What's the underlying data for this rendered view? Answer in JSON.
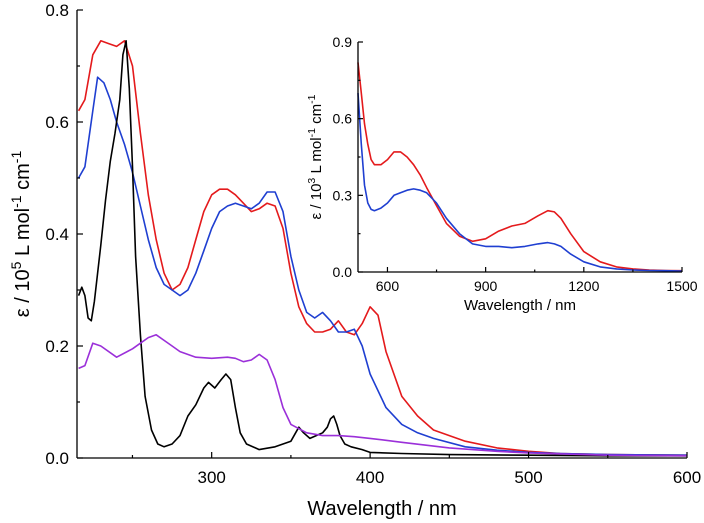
{
  "chart_data": [
    {
      "type": "line",
      "name": "main",
      "xlabel": "Wavelength / nm",
      "ylabel_parts": [
        "ε / 10",
        "5",
        " L mol",
        "-1",
        " cm",
        "-1"
      ],
      "xlim": [
        215,
        600
      ],
      "ylim": [
        0,
        0.8
      ],
      "xticks": [
        300,
        400,
        500,
        600
      ],
      "yticks": [
        0.0,
        0.2,
        0.4,
        0.6,
        0.8
      ],
      "xtick_labels": [
        "300",
        "400",
        "500",
        "600"
      ],
      "ytick_labels": [
        "0.0",
        "0.2",
        "0.4",
        "0.6",
        "0.8"
      ],
      "series": [
        {
          "name": "red",
          "color": "#e41a1c",
          "x": [
            216,
            220,
            225,
            230,
            235,
            240,
            245,
            250,
            255,
            260,
            265,
            270,
            275,
            280,
            285,
            290,
            295,
            300,
            305,
            310,
            315,
            320,
            325,
            330,
            335,
            340,
            345,
            350,
            355,
            360,
            365,
            370,
            375,
            380,
            385,
            390,
            395,
            400,
            405,
            410,
            420,
            430,
            440,
            460,
            480,
            500,
            520,
            550,
            600
          ],
          "y": [
            0.62,
            0.64,
            0.72,
            0.745,
            0.74,
            0.735,
            0.745,
            0.7,
            0.58,
            0.47,
            0.39,
            0.33,
            0.3,
            0.31,
            0.34,
            0.39,
            0.44,
            0.47,
            0.48,
            0.48,
            0.47,
            0.455,
            0.44,
            0.445,
            0.455,
            0.45,
            0.41,
            0.33,
            0.27,
            0.24,
            0.225,
            0.225,
            0.23,
            0.245,
            0.225,
            0.22,
            0.24,
            0.27,
            0.255,
            0.19,
            0.11,
            0.075,
            0.05,
            0.03,
            0.018,
            0.012,
            0.008,
            0.006,
            0.005
          ]
        },
        {
          "name": "blue",
          "color": "#1f3fd1",
          "x": [
            216,
            220,
            225,
            228,
            232,
            236,
            240,
            245,
            250,
            255,
            260,
            265,
            270,
            275,
            280,
            285,
            290,
            295,
            300,
            305,
            310,
            315,
            320,
            325,
            330,
            335,
            340,
            345,
            350,
            355,
            360,
            365,
            370,
            375,
            380,
            385,
            390,
            395,
            400,
            410,
            420,
            430,
            440,
            460,
            480,
            500,
            520,
            550,
            600
          ],
          "y": [
            0.5,
            0.52,
            0.62,
            0.68,
            0.67,
            0.64,
            0.6,
            0.56,
            0.51,
            0.45,
            0.39,
            0.34,
            0.31,
            0.3,
            0.29,
            0.3,
            0.33,
            0.37,
            0.41,
            0.44,
            0.45,
            0.455,
            0.45,
            0.445,
            0.455,
            0.475,
            0.475,
            0.44,
            0.36,
            0.3,
            0.26,
            0.25,
            0.26,
            0.245,
            0.225,
            0.225,
            0.23,
            0.2,
            0.15,
            0.09,
            0.06,
            0.045,
            0.035,
            0.02,
            0.014,
            0.01,
            0.008,
            0.006,
            0.005
          ]
        },
        {
          "name": "black",
          "color": "#000000",
          "x": [
            216,
            218,
            220,
            222,
            224,
            226,
            228,
            230,
            233,
            236,
            239,
            242,
            244,
            246,
            248,
            250,
            252,
            255,
            258,
            262,
            266,
            270,
            275,
            280,
            285,
            290,
            295,
            298,
            302,
            306,
            309,
            312,
            315,
            318,
            322,
            330,
            340,
            350,
            355,
            358,
            362,
            366,
            370,
            373,
            375,
            377,
            379,
            381,
            384,
            388,
            395,
            400,
            420,
            450,
            500,
            550,
            600
          ],
          "y": [
            0.29,
            0.305,
            0.29,
            0.25,
            0.245,
            0.28,
            0.33,
            0.38,
            0.46,
            0.53,
            0.58,
            0.64,
            0.72,
            0.745,
            0.66,
            0.52,
            0.36,
            0.22,
            0.11,
            0.05,
            0.025,
            0.02,
            0.025,
            0.04,
            0.075,
            0.095,
            0.125,
            0.135,
            0.125,
            0.14,
            0.15,
            0.14,
            0.09,
            0.045,
            0.025,
            0.015,
            0.02,
            0.03,
            0.055,
            0.045,
            0.035,
            0.04,
            0.045,
            0.055,
            0.07,
            0.075,
            0.06,
            0.04,
            0.025,
            0.02,
            0.015,
            0.01,
            0.008,
            0.006,
            0.005,
            0.004,
            0.004
          ]
        },
        {
          "name": "purple",
          "color": "#9b30d9",
          "x": [
            216,
            220,
            225,
            230,
            240,
            250,
            255,
            260,
            265,
            270,
            275,
            280,
            290,
            300,
            310,
            315,
            320,
            325,
            330,
            335,
            340,
            345,
            350,
            360,
            370,
            380,
            390,
            400,
            420,
            450,
            480,
            500,
            550,
            600
          ],
          "y": [
            0.16,
            0.165,
            0.205,
            0.2,
            0.18,
            0.195,
            0.205,
            0.215,
            0.22,
            0.21,
            0.2,
            0.19,
            0.18,
            0.178,
            0.18,
            0.178,
            0.172,
            0.175,
            0.185,
            0.175,
            0.14,
            0.09,
            0.06,
            0.045,
            0.04,
            0.04,
            0.038,
            0.035,
            0.028,
            0.018,
            0.012,
            0.009,
            0.005,
            0.004
          ]
        }
      ]
    },
    {
      "type": "line",
      "name": "inset",
      "xlabel": "Wavelength / nm",
      "ylabel_parts": [
        "ε / 10",
        "3",
        " L mol",
        "-1",
        " cm",
        "-1"
      ],
      "xlim": [
        510,
        1500
      ],
      "ylim": [
        0,
        0.9
      ],
      "xticks": [
        600,
        900,
        1200,
        1500
      ],
      "yticks": [
        0.0,
        0.3,
        0.6,
        0.9
      ],
      "xtick_labels": [
        "600",
        "900",
        "1200",
        "1500"
      ],
      "ytick_labels": [
        "0.0",
        "0.3",
        "0.6",
        "0.9"
      ],
      "series": [
        {
          "name": "red",
          "color": "#e41a1c",
          "x": [
            510,
            520,
            530,
            540,
            550,
            560,
            580,
            600,
            620,
            640,
            660,
            680,
            700,
            720,
            750,
            780,
            820,
            860,
            900,
            940,
            980,
            1020,
            1060,
            1090,
            1110,
            1130,
            1160,
            1200,
            1250,
            1300,
            1350,
            1400,
            1450,
            1500
          ],
          "y": [
            0.82,
            0.7,
            0.58,
            0.5,
            0.44,
            0.42,
            0.42,
            0.44,
            0.47,
            0.47,
            0.45,
            0.42,
            0.38,
            0.33,
            0.26,
            0.19,
            0.14,
            0.12,
            0.13,
            0.16,
            0.18,
            0.19,
            0.22,
            0.24,
            0.235,
            0.21,
            0.15,
            0.08,
            0.04,
            0.02,
            0.012,
            0.008,
            0.006,
            0.005
          ]
        },
        {
          "name": "blue",
          "color": "#1f3fd1",
          "x": [
            510,
            520,
            530,
            540,
            550,
            560,
            580,
            600,
            620,
            640,
            660,
            680,
            700,
            720,
            750,
            780,
            820,
            860,
            900,
            940,
            980,
            1020,
            1060,
            1090,
            1110,
            1130,
            1160,
            1200,
            1250,
            1300,
            1350,
            1400,
            1450,
            1500
          ],
          "y": [
            0.7,
            0.5,
            0.34,
            0.27,
            0.245,
            0.24,
            0.25,
            0.27,
            0.3,
            0.31,
            0.32,
            0.325,
            0.32,
            0.31,
            0.27,
            0.21,
            0.15,
            0.11,
            0.1,
            0.1,
            0.095,
            0.1,
            0.11,
            0.115,
            0.11,
            0.1,
            0.07,
            0.04,
            0.02,
            0.012,
            0.008,
            0.006,
            0.005,
            0.004
          ]
        }
      ]
    }
  ]
}
